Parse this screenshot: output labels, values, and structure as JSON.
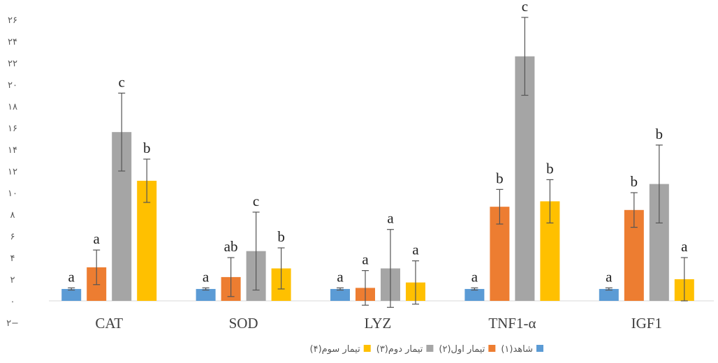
{
  "chart_data": {
    "type": "bar",
    "categories": [
      "CAT",
      "SOD",
      "LYZ",
      "TNF1-α",
      "IGF1"
    ],
    "series": [
      {
        "name": "شاهد(۱)",
        "color": "#5B9BD5",
        "values": [
          1.1,
          1.1,
          1.1,
          1.1,
          1.1
        ],
        "errors": [
          0.1,
          0.1,
          0.1,
          0.1,
          0.1
        ],
        "labels": [
          "a",
          "a",
          "a",
          "a",
          "a"
        ]
      },
      {
        "name": "تیمار اول(۲)",
        "color": "#ED7D31",
        "values": [
          3.1,
          2.2,
          1.2,
          8.7,
          8.4
        ],
        "errors": [
          1.6,
          1.8,
          1.6,
          1.6,
          1.6
        ],
        "labels": [
          "a",
          "ab",
          "a",
          "b",
          "b"
        ]
      },
      {
        "name": "تیمار دوم(۳)",
        "color": "#A5A5A5",
        "values": [
          15.6,
          4.6,
          3.0,
          22.6,
          10.8
        ],
        "errors": [
          3.6,
          3.6,
          3.6,
          3.6,
          3.6
        ],
        "labels": [
          "c",
          "c",
          "a",
          "c",
          "b"
        ]
      },
      {
        "name": "تیمار سوم(۴)",
        "color": "#FFC000",
        "values": [
          11.1,
          3.0,
          1.7,
          9.2,
          2.0
        ],
        "errors": [
          2.0,
          1.9,
          2.0,
          2.0,
          2.0
        ],
        "labels": [
          "b",
          "b",
          "a",
          "b",
          "a"
        ]
      }
    ],
    "ylim": [
      -2,
      26
    ],
    "yticks": [
      26,
      24,
      22,
      20,
      18,
      16,
      14,
      12,
      10,
      8,
      6,
      4,
      2,
      0,
      -2
    ],
    "ytick_labels": [
      "۲۶",
      "۲۴",
      "۲۲",
      "۲۰",
      "۱۸",
      "۱۶",
      "۱۴",
      "۱۲",
      "۱۰",
      "۸",
      "۶",
      "۴",
      "۲",
      "۰",
      "۲−"
    ],
    "title": "",
    "xlabel": "",
    "ylabel": "",
    "grid": false,
    "legend_position": "bottom"
  }
}
